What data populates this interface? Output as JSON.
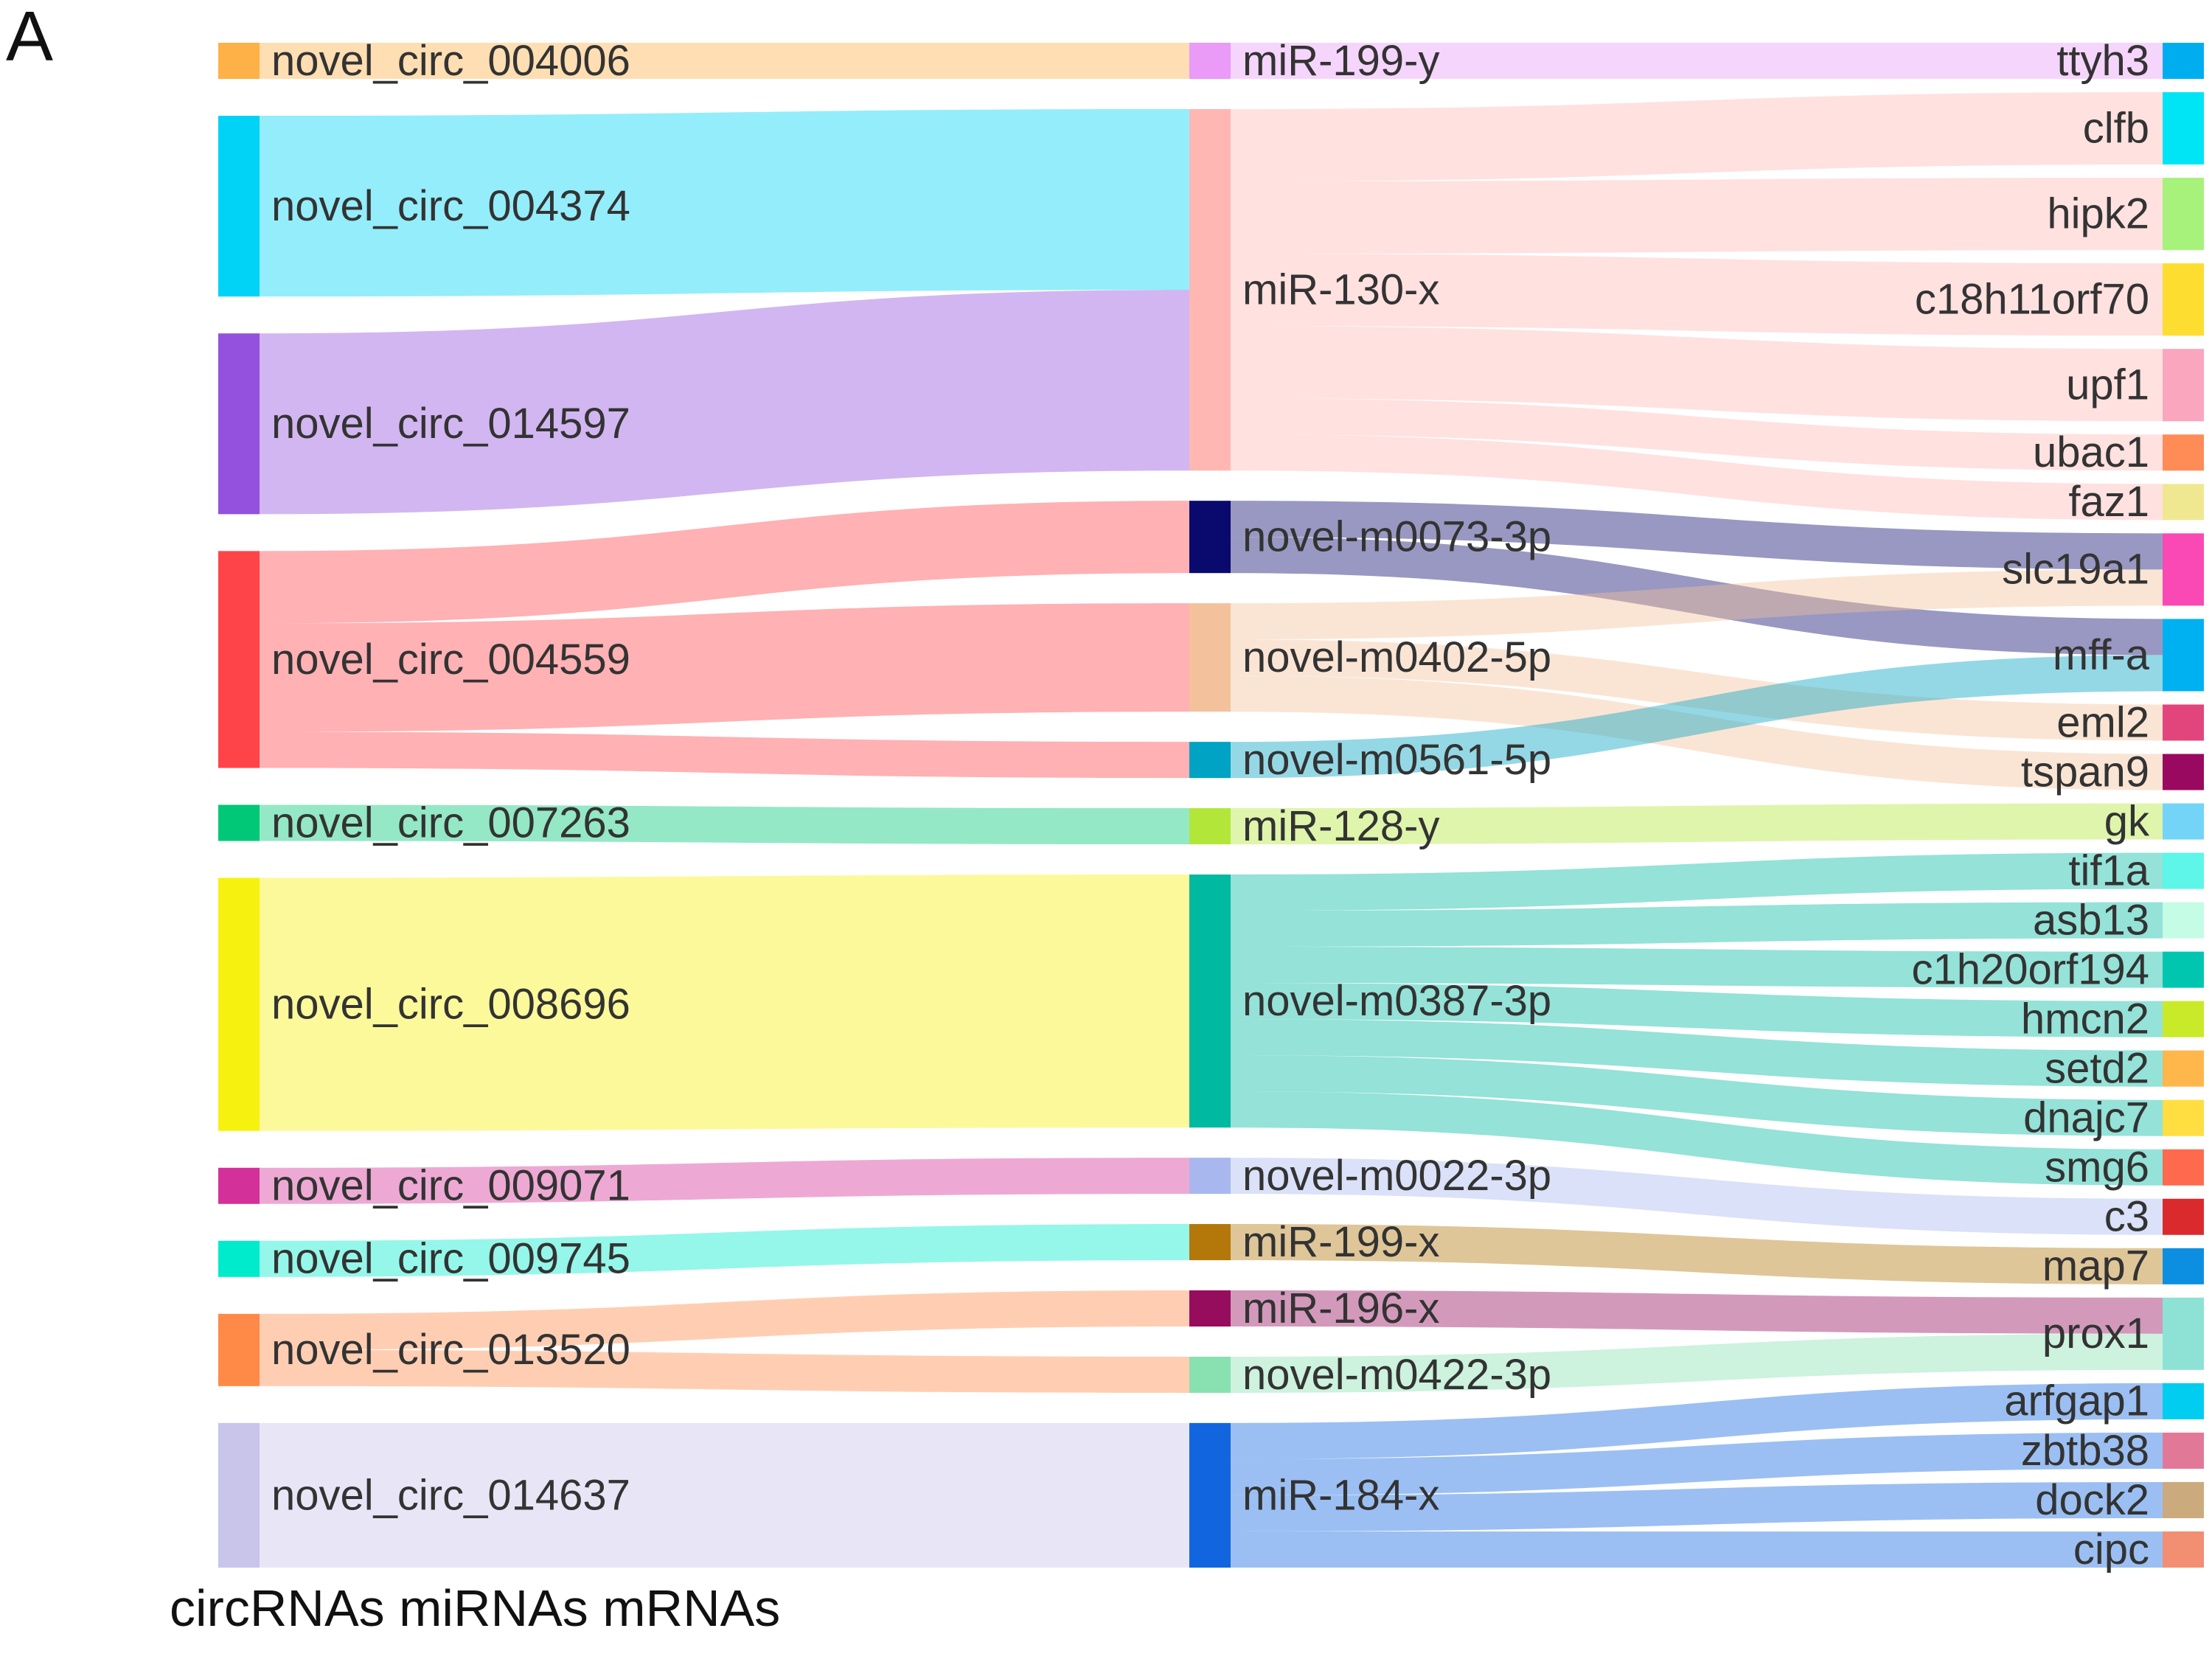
{
  "panel_label": "A",
  "footer_text": "circRNAs miRNAs mRNAs",
  "columns": [
    {
      "id": "circ",
      "nodes": [
        {
          "id": "novel_circ_004006",
          "label": "novel_circ_004006",
          "color": "#FDB147"
        },
        {
          "id": "novel_circ_004374",
          "label": "novel_circ_004374",
          "color": "#00D3F5"
        },
        {
          "id": "novel_circ_014597",
          "label": "novel_circ_014597",
          "color": "#9451DD"
        },
        {
          "id": "novel_circ_004559",
          "label": "novel_circ_004559",
          "color": "#FF4449"
        },
        {
          "id": "novel_circ_007263",
          "label": "novel_circ_007263",
          "color": "#00C876"
        },
        {
          "id": "novel_circ_008696",
          "label": "novel_circ_008696",
          "color": "#F7F10F"
        },
        {
          "id": "novel_circ_009071",
          "label": "novel_circ_009071",
          "color": "#D33199"
        },
        {
          "id": "novel_circ_009745",
          "label": "novel_circ_009745",
          "color": "#00EBCB"
        },
        {
          "id": "novel_circ_013520",
          "label": "novel_circ_013520",
          "color": "#FF8A48"
        },
        {
          "id": "novel_circ_014637",
          "label": "novel_circ_014637",
          "color": "#C8C4EA"
        }
      ]
    },
    {
      "id": "mirna",
      "nodes": [
        {
          "id": "miR-199-y",
          "label": "miR-199-y",
          "color": "#E99BF7"
        },
        {
          "id": "miR-130-x",
          "label": "miR-130-x",
          "color": "#FFB7B4"
        },
        {
          "id": "novel-m0073-3p",
          "label": "novel-m0073-3p",
          "color": "#0A0A6E"
        },
        {
          "id": "novel-m0402-5p",
          "label": "novel-m0402-5p",
          "color": "#F3C29C"
        },
        {
          "id": "novel-m0561-5p",
          "label": "novel-m0561-5p",
          "color": "#00A3C4"
        },
        {
          "id": "miR-128-y",
          "label": "miR-128-y",
          "color": "#B2E73A"
        },
        {
          "id": "novel-m0387-3p",
          "label": "novel-m0387-3p",
          "color": "#00B9A1"
        },
        {
          "id": "novel-m0022-3p",
          "label": "novel-m0022-3p",
          "color": "#A8B8EE"
        },
        {
          "id": "miR-199-x",
          "label": "miR-199-x",
          "color": "#B3770A"
        },
        {
          "id": "miR-196-x",
          "label": "miR-196-x",
          "color": "#960D5E"
        },
        {
          "id": "novel-m0422-3p",
          "label": "novel-m0422-3p",
          "color": "#89E0B1"
        },
        {
          "id": "miR-184-x",
          "label": "miR-184-x",
          "color": "#1166E0"
        }
      ]
    },
    {
      "id": "mrna",
      "nodes": [
        {
          "id": "ttyh3",
          "label": "ttyh3",
          "color": "#00AEEF"
        },
        {
          "id": "clfb",
          "label": "clfb",
          "color": "#00E5F5"
        },
        {
          "id": "hipk2",
          "label": "hipk2",
          "color": "#A6F27A"
        },
        {
          "id": "c18h11orf70",
          "label": "c18h11orf70",
          "color": "#FEDD31"
        },
        {
          "id": "upf1",
          "label": "upf1",
          "color": "#FAA6BE"
        },
        {
          "id": "ubac1",
          "label": "ubac1",
          "color": "#FF8B57"
        },
        {
          "id": "faz1",
          "label": "faz1",
          "color": "#EFE890"
        },
        {
          "id": "slc19a1",
          "label": "slc19a1",
          "color": "#FA49B4"
        },
        {
          "id": "mff-a",
          "label": "mff-a",
          "color": "#00B1F2"
        },
        {
          "id": "eml2",
          "label": "eml2",
          "color": "#E2457C"
        },
        {
          "id": "tspan9",
          "label": "tspan9",
          "color": "#99095F"
        },
        {
          "id": "gk",
          "label": "gk",
          "color": "#73D4F8"
        },
        {
          "id": "tif1a",
          "label": "tif1a",
          "color": "#5DF6E8"
        },
        {
          "id": "asb13",
          "label": "asb13",
          "color": "#C4FCE6"
        },
        {
          "id": "c1h20orf194",
          "label": "c1h20orf194",
          "color": "#00C6B0"
        },
        {
          "id": "hmcn2",
          "label": "hmcn2",
          "color": "#C9EA28"
        },
        {
          "id": "setd2",
          "label": "setd2",
          "color": "#FFB64A"
        },
        {
          "id": "dnajc7",
          "label": "dnajc7",
          "color": "#FFDE41"
        },
        {
          "id": "smg6",
          "label": "smg6",
          "color": "#FF6A4E"
        },
        {
          "id": "c3",
          "label": "c3",
          "color": "#DA2A2E"
        },
        {
          "id": "map7",
          "label": "map7",
          "color": "#0C8FE0"
        },
        {
          "id": "prox1",
          "label": "prox1",
          "color": "#8DE2D5"
        },
        {
          "id": "arfgap1",
          "label": "arfgap1",
          "color": "#00CDF0"
        },
        {
          "id": "zbtb38",
          "label": "zbtb38",
          "color": "#E27898"
        },
        {
          "id": "dock2",
          "label": "dock2",
          "color": "#CBAA7D"
        },
        {
          "id": "cipc",
          "label": "cipc",
          "color": "#F28E72"
        }
      ]
    }
  ],
  "links": [
    {
      "source": "novel_circ_004006",
      "target": "miR-199-y",
      "value": 1
    },
    {
      "source": "novel_circ_004374",
      "target": "miR-130-x",
      "value": 5
    },
    {
      "source": "novel_circ_014597",
      "target": "miR-130-x",
      "value": 5
    },
    {
      "source": "novel_circ_004559",
      "target": "novel-m0073-3p",
      "value": 2
    },
    {
      "source": "novel_circ_004559",
      "target": "novel-m0402-5p",
      "value": 3
    },
    {
      "source": "novel_circ_004559",
      "target": "novel-m0561-5p",
      "value": 1
    },
    {
      "source": "novel_circ_007263",
      "target": "miR-128-y",
      "value": 1
    },
    {
      "source": "novel_circ_008696",
      "target": "novel-m0387-3p",
      "value": 7
    },
    {
      "source": "novel_circ_009071",
      "target": "novel-m0022-3p",
      "value": 1
    },
    {
      "source": "novel_circ_009745",
      "target": "miR-199-x",
      "value": 1
    },
    {
      "source": "novel_circ_013520",
      "target": "miR-196-x",
      "value": 1
    },
    {
      "source": "novel_circ_013520",
      "target": "novel-m0422-3p",
      "value": 1
    },
    {
      "source": "novel_circ_014637",
      "target": "miR-184-x",
      "value": 4
    },
    {
      "source": "miR-199-y",
      "target": "ttyh3",
      "value": 1
    },
    {
      "source": "miR-130-x",
      "target": "clfb",
      "value": 2
    },
    {
      "source": "miR-130-x",
      "target": "hipk2",
      "value": 2
    },
    {
      "source": "miR-130-x",
      "target": "c18h11orf70",
      "value": 2
    },
    {
      "source": "miR-130-x",
      "target": "upf1",
      "value": 2
    },
    {
      "source": "miR-130-x",
      "target": "ubac1",
      "value": 1
    },
    {
      "source": "miR-130-x",
      "target": "faz1",
      "value": 1
    },
    {
      "source": "novel-m0073-3p",
      "target": "slc19a1",
      "value": 1
    },
    {
      "source": "novel-m0073-3p",
      "target": "mff-a",
      "value": 1
    },
    {
      "source": "novel-m0402-5p",
      "target": "slc19a1",
      "value": 1
    },
    {
      "source": "novel-m0402-5p",
      "target": "eml2",
      "value": 1
    },
    {
      "source": "novel-m0402-5p",
      "target": "tspan9",
      "value": 1
    },
    {
      "source": "novel-m0561-5p",
      "target": "mff-a",
      "value": 1
    },
    {
      "source": "miR-128-y",
      "target": "gk",
      "value": 1
    },
    {
      "source": "novel-m0387-3p",
      "target": "tif1a",
      "value": 1
    },
    {
      "source": "novel-m0387-3p",
      "target": "asb13",
      "value": 1
    },
    {
      "source": "novel-m0387-3p",
      "target": "c1h20orf194",
      "value": 1
    },
    {
      "source": "novel-m0387-3p",
      "target": "hmcn2",
      "value": 1
    },
    {
      "source": "novel-m0387-3p",
      "target": "setd2",
      "value": 1
    },
    {
      "source": "novel-m0387-3p",
      "target": "dnajc7",
      "value": 1
    },
    {
      "source": "novel-m0387-3p",
      "target": "smg6",
      "value": 1
    },
    {
      "source": "novel-m0022-3p",
      "target": "c3",
      "value": 1
    },
    {
      "source": "miR-199-x",
      "target": "map7",
      "value": 1
    },
    {
      "source": "miR-196-x",
      "target": "prox1",
      "value": 1
    },
    {
      "source": "novel-m0422-3p",
      "target": "prox1",
      "value": 1
    },
    {
      "source": "miR-184-x",
      "target": "arfgap1",
      "value": 1
    },
    {
      "source": "miR-184-x",
      "target": "zbtb38",
      "value": 1
    },
    {
      "source": "miR-184-x",
      "target": "dock2",
      "value": 1
    },
    {
      "source": "miR-184-x",
      "target": "cipc",
      "value": 1
    }
  ]
}
